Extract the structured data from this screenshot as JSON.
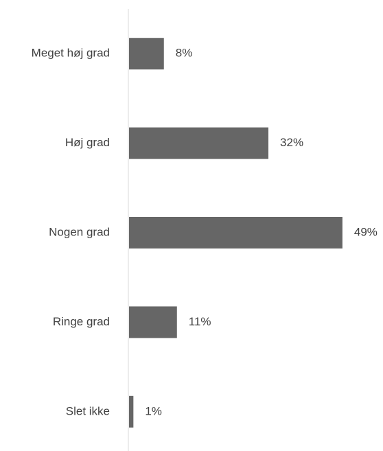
{
  "chart_data": {
    "type": "bar",
    "orientation": "horizontal",
    "categories": [
      "Meget høj grad",
      "Høj grad",
      "Nogen grad",
      "Ringe grad",
      "Slet ikke"
    ],
    "values": [
      8,
      32,
      49,
      11,
      1
    ],
    "value_labels": [
      "8%",
      "32%",
      "49%",
      "11%",
      "1%"
    ],
    "color": "#666666",
    "xlim": [
      0,
      58
    ]
  }
}
